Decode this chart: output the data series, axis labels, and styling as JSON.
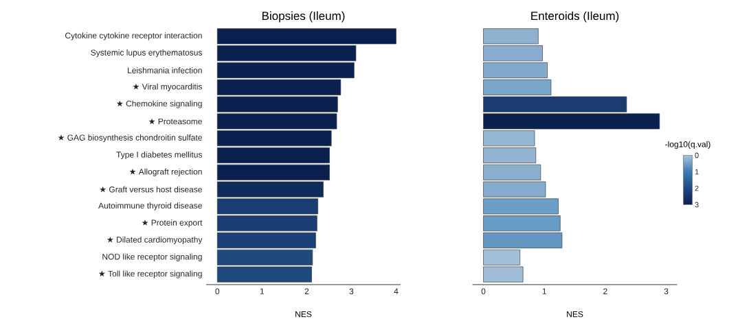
{
  "chart_data": [
    {
      "type": "bar",
      "orientation": "horizontal",
      "title": "Biopsies (Ileum)",
      "xlabel": "NES",
      "categories": [
        "Cytokine cytokine receptor interaction",
        "Systemic lupus erythematosus",
        "Leishmania infection",
        "★ Viral myocarditis",
        "★ Chemokine signaling",
        "★ Proteasome",
        "★ GAG biosynthesis chondroitin sulfate",
        "Type I diabetes mellitus",
        "★ Allograft rejection",
        "★ Graft versus host disease",
        "Autoimmune thyroid disease",
        "★ Protein export",
        "★ Dilated cardiomyopathy",
        "NOD like receptor signaling",
        "★ Toll like receptor signaling"
      ],
      "values": [
        4.0,
        3.1,
        3.06,
        2.76,
        2.69,
        2.67,
        2.55,
        2.51,
        2.51,
        2.37,
        2.25,
        2.23,
        2.2,
        2.13,
        2.11
      ],
      "colors": [
        "#0a2150",
        "#0a2150",
        "#0a2150",
        "#0a2150",
        "#0a2150",
        "#0a2150",
        "#0a2150",
        "#0a2150",
        "#0a2150",
        "#0e2b5c",
        "#193d73",
        "#193d73",
        "#1b4077",
        "#1f4a7d",
        "#1f4a7d"
      ],
      "xlim": [
        -0.25,
        4.1
      ],
      "xticks": [
        0,
        1,
        2,
        3,
        4
      ]
    },
    {
      "type": "bar",
      "orientation": "horizontal",
      "title": "Enteroids (Ileum)",
      "xlabel": "NES",
      "categories": [
        null,
        null,
        null,
        null,
        null,
        null,
        null,
        null,
        null,
        null,
        null,
        null,
        null,
        null,
        null
      ],
      "values": [
        0.9,
        0.97,
        1.05,
        1.11,
        2.35,
        2.89,
        0.84,
        0.86,
        0.94,
        1.02,
        1.23,
        1.26,
        1.29,
        0.6,
        0.65
      ],
      "colors": [
        "#8fb1cf",
        "#89acd0",
        "#81a9cc",
        "#7aa6ca",
        "#1a3c70",
        "#0b2150",
        "#95b6d2",
        "#94b5d1",
        "#8bb0cf",
        "#84abcc",
        "#6b9ec6",
        "#699cc5",
        "#6597c2",
        "#a2bfd8",
        "#9fbdd6"
      ],
      "xlim": [
        -0.18,
        3.18
      ],
      "xticks": [
        0,
        1,
        2,
        3
      ],
      "tick_labels": "x",
      "clabel": "-log10(q.val)",
      "clim": [
        0,
        3
      ],
      "cticks": [
        0,
        1,
        2,
        3
      ]
    }
  ]
}
